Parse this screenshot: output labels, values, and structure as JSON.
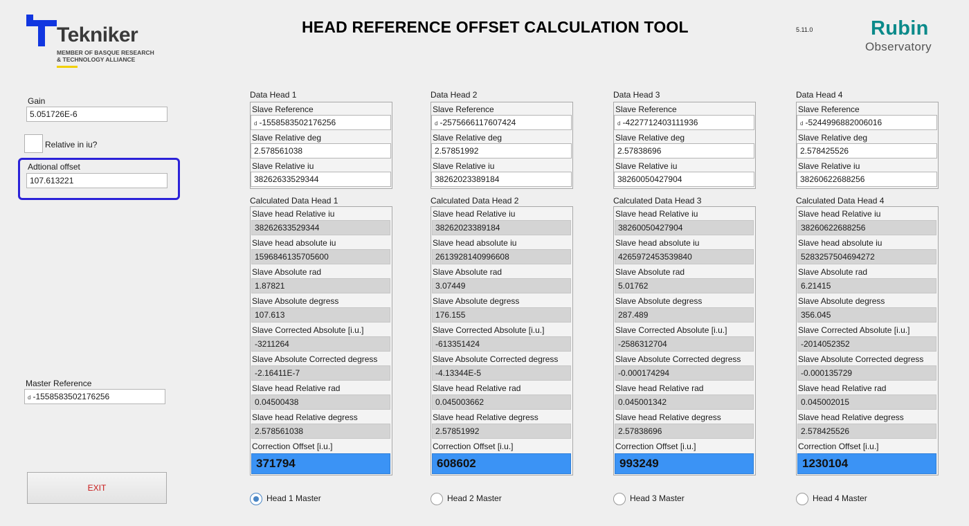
{
  "header": {
    "logo_name": "Tekniker",
    "logo_tagline_1": "MEMBER OF BASQUE RESEARCH",
    "logo_tagline_2": "& TECHNOLOGY ALLIANCE",
    "title": "HEAD REFERENCE OFFSET CALCULATION TOOL",
    "version": "5.11.0",
    "rubin_line1": "Rubin",
    "rubin_line2": "Observatory"
  },
  "colors": {
    "accent_blue": "#3b93f5",
    "highlight_border": "#2b22d8",
    "rubin_teal": "#0b8a8a",
    "exit_text": "#c81818"
  },
  "left": {
    "gain_label": "Gain",
    "gain_value": "5.051726E-6",
    "relative_label": "Relative in iu?",
    "relative_checked": false,
    "offset_label": "Adtional offset",
    "offset_value": "107.613221",
    "master_ref_label": "Master Reference",
    "master_ref_value": "-1558583502176256",
    "exit_label": "EXIT"
  },
  "heads": [
    {
      "data_title": "Data Head 1",
      "slave_ref_label": "Slave Reference",
      "slave_ref": "-1558583502176256",
      "rel_deg_label": "Slave Relative deg",
      "rel_deg": "2.578561038",
      "rel_iu_label": "Slave Relative iu",
      "rel_iu": "38262633529344",
      "calc_title": "Calculated Data Head 1",
      "c_rel_iu_label": "Slave head Relative iu",
      "c_rel_iu": "38262633529344",
      "c_abs_iu_label": "Slave head absolute iu",
      "c_abs_iu": "1596846135705600",
      "c_abs_rad_label": "Slave Absolute rad",
      "c_abs_rad": "1.87821",
      "c_abs_deg_label": "Slave Absolute degress",
      "c_abs_deg": "107.613",
      "c_corr_abs_label": "Slave Corrected Absolute [i.u.]",
      "c_corr_abs": "-3211264",
      "c_abs_corr_deg_label": "Slave Absolute Corrected degress",
      "c_abs_corr_deg": "-2.16411E-7",
      "c_rel_rad_label": "Slave head Relative rad",
      "c_rel_rad": "0.04500438",
      "c_rel_deg_label": "Slave head Relative degress",
      "c_rel_deg": "2.578561038",
      "c_offset_label": "Correction Offset [i.u.]",
      "c_offset": "371794",
      "master_label": "Head 1 Master",
      "is_master": true
    },
    {
      "data_title": "Data Head 2",
      "slave_ref_label": "Slave Reference",
      "slave_ref": "-2575666117607424",
      "rel_deg_label": "Slave Relative deg",
      "rel_deg": "2.57851992",
      "rel_iu_label": "Slave Relative iu",
      "rel_iu": "38262023389184",
      "calc_title": "Calculated Data Head 2",
      "c_rel_iu_label": "Slave head Relative iu",
      "c_rel_iu": "38262023389184",
      "c_abs_iu_label": "Slave head absolute iu",
      "c_abs_iu": "2613928140996608",
      "c_abs_rad_label": "Slave Absolute rad",
      "c_abs_rad": "3.07449",
      "c_abs_deg_label": "Slave Absolute degress",
      "c_abs_deg": "176.155",
      "c_corr_abs_label": "Slave Corrected Absolute [i.u.]",
      "c_corr_abs": "-613351424",
      "c_abs_corr_deg_label": "Slave Absolute Corrected degress",
      "c_abs_corr_deg": "-4.13344E-5",
      "c_rel_rad_label": "Slave head Relative rad",
      "c_rel_rad": "0.045003662",
      "c_rel_deg_label": "Slave head Relative degress",
      "c_rel_deg": "2.57851992",
      "c_offset_label": "Correction Offset [i.u.]",
      "c_offset": "608602",
      "master_label": "Head 2 Master",
      "is_master": false
    },
    {
      "data_title": "Data Head 3",
      "slave_ref_label": "Slave Reference",
      "slave_ref": "-4227712403111936",
      "rel_deg_label": "Slave Relative deg",
      "rel_deg": "2.57838696",
      "rel_iu_label": "Slave Relative iu",
      "rel_iu": "38260050427904",
      "calc_title": "Calculated Data Head 3",
      "c_rel_iu_label": "Slave head Relative iu",
      "c_rel_iu": "38260050427904",
      "c_abs_iu_label": "Slave head absolute iu",
      "c_abs_iu": "4265972453539840",
      "c_abs_rad_label": "Slave Absolute rad",
      "c_abs_rad": "5.01762",
      "c_abs_deg_label": "Slave Absolute degress",
      "c_abs_deg": "287.489",
      "c_corr_abs_label": "Slave Corrected Absolute [i.u.]",
      "c_corr_abs": "-2586312704",
      "c_abs_corr_deg_label": "Slave Absolute Corrected degress",
      "c_abs_corr_deg": "-0.000174294",
      "c_rel_rad_label": "Slave head Relative rad",
      "c_rel_rad": "0.045001342",
      "c_rel_deg_label": "Slave head Relative degress",
      "c_rel_deg": "2.57838696",
      "c_offset_label": "Correction Offset [i.u.]",
      "c_offset": "993249",
      "master_label": "Head 3 Master",
      "is_master": false
    },
    {
      "data_title": "Data Head 4",
      "slave_ref_label": "Slave Reference",
      "slave_ref": "-5244996882006016",
      "rel_deg_label": "Slave Relative deg",
      "rel_deg": "2.578425526",
      "rel_iu_label": "Slave Relative iu",
      "rel_iu": "38260622688256",
      "calc_title": "Calculated Data Head 4",
      "c_rel_iu_label": "Slave head Relative iu",
      "c_rel_iu": "38260622688256",
      "c_abs_iu_label": "Slave head absolute iu",
      "c_abs_iu": "5283257504694272",
      "c_abs_rad_label": "Slave Absolute rad",
      "c_abs_rad": "6.21415",
      "c_abs_deg_label": "Slave Absolute degress",
      "c_abs_deg": "356.045",
      "c_corr_abs_label": "Slave Corrected Absolute [i.u.]",
      "c_corr_abs": "-2014052352",
      "c_abs_corr_deg_label": "Slave Absolute Corrected degress",
      "c_abs_corr_deg": "-0.000135729",
      "c_rel_rad_label": "Slave head Relative rad",
      "c_rel_rad": "0.045002015",
      "c_rel_deg_label": "Slave head Relative degress",
      "c_rel_deg": "2.578425526",
      "c_offset_label": "Correction Offset [i.u.]",
      "c_offset": "1230104",
      "master_label": "Head 4 Master",
      "is_master": false
    }
  ]
}
